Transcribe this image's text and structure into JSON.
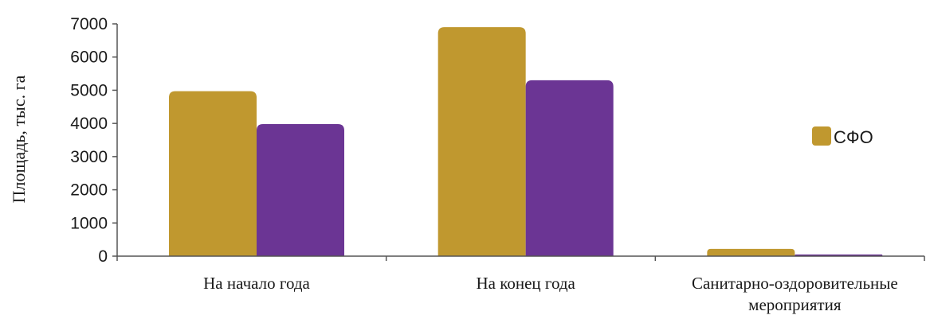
{
  "chart_data": {
    "type": "bar",
    "categories": [
      "На начало года",
      "На конец года",
      "Санитарно-оздоровительные мероприятия"
    ],
    "category_lines": [
      [
        "На начало года"
      ],
      [
        "На конец года"
      ],
      [
        "Санитарно-оздоровительные",
        "мероприятия"
      ]
    ],
    "series": [
      {
        "name": "СФО",
        "color": "#c0982f",
        "values": [
          4970,
          6900,
          220
        ]
      },
      {
        "color": "#6b3594",
        "values": [
          3980,
          5300,
          50
        ]
      }
    ],
    "ylabel": "Площадь, тыс. га",
    "ylim": [
      0,
      7000
    ],
    "yticks": [
      0,
      1000,
      2000,
      3000,
      4000,
      5000,
      6000,
      7000
    ],
    "grid": false,
    "legend_position": "right"
  }
}
